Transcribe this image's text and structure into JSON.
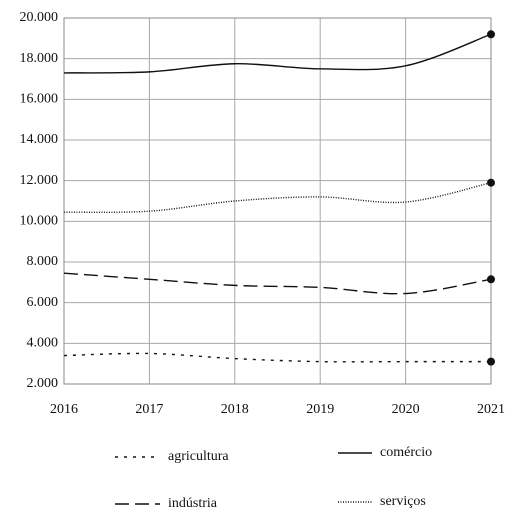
{
  "chart_data": {
    "type": "line",
    "x": [
      2016,
      2017,
      2018,
      2019,
      2020,
      2021
    ],
    "xlim": [
      2016,
      2021
    ],
    "xticks": [
      2016,
      2017,
      2018,
      2019,
      2020,
      2021
    ],
    "ylim": [
      2000,
      20000
    ],
    "yticks": [
      {
        "value": 2000,
        "label": "2.000"
      },
      {
        "value": 4000,
        "label": "4.000"
      },
      {
        "value": 6000,
        "label": "6.000"
      },
      {
        "value": 8000,
        "label": "8.000"
      },
      {
        "value": 10000,
        "label": "10.000"
      },
      {
        "value": 12000,
        "label": "12.000"
      },
      {
        "value": 14000,
        "label": "14.000"
      },
      {
        "value": 16000,
        "label": "16.000"
      },
      {
        "value": 18000,
        "label": "18.000"
      },
      {
        "value": 20000,
        "label": "20.000"
      }
    ],
    "grid": true,
    "series": [
      {
        "name": "agricultura",
        "color": "#111111",
        "dash": "3,6",
        "values": [
          3400,
          3500,
          3250,
          3100,
          3100,
          3100
        ]
      },
      {
        "name": "comércio",
        "color": "#111111",
        "dash": "none",
        "values": [
          17300,
          17350,
          17750,
          17500,
          17650,
          19200
        ]
      },
      {
        "name": "indústria",
        "color": "#111111",
        "dash": "14,6",
        "values": [
          7450,
          7150,
          6850,
          6750,
          6450,
          7150
        ]
      },
      {
        "name": "serviços",
        "color": "#111111",
        "dash": "1,1.5",
        "values": [
          10450,
          10500,
          11000,
          11200,
          10950,
          11900
        ]
      }
    ]
  }
}
